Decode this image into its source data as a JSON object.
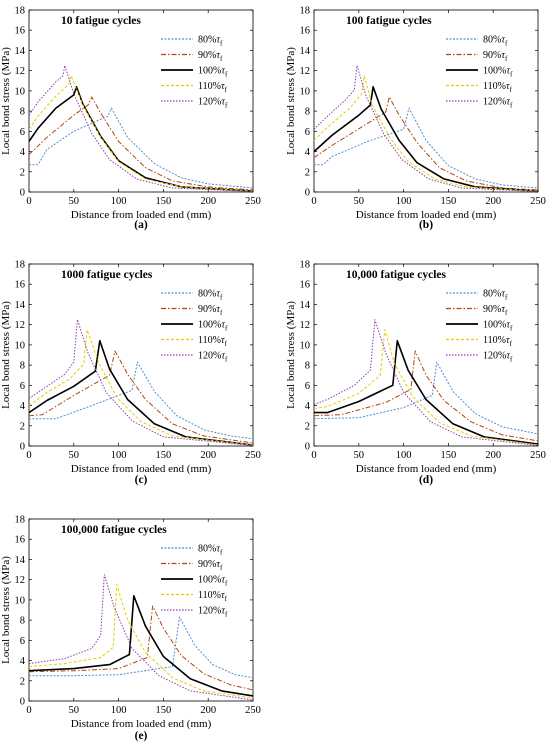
{
  "colors": {
    "s80": "#4f8fd0",
    "s90": "#b5430f",
    "s100": "#000000",
    "s110": "#e8cc00",
    "s120": "#8a3fb0"
  },
  "chart_data": [
    {
      "type": "line",
      "panel_label": "(a)",
      "title": "10 fatigue cycles",
      "xlabel": "Distance from loaded end (mm)",
      "ylabel": "Local bond stress (MPa)",
      "xlim": [
        0,
        250
      ],
      "ylim": [
        0,
        18
      ],
      "xticks": [
        0,
        50,
        100,
        150,
        200,
        250
      ],
      "yticks": [
        0,
        2,
        4,
        6,
        8,
        10,
        12,
        14,
        16,
        18
      ],
      "legend_position": "top-right",
      "series": [
        {
          "name": "80%τf",
          "key": "s80",
          "x": [
            0,
            10,
            20,
            50,
            88,
            92,
            110,
            140,
            170,
            200,
            250
          ],
          "y": [
            2.7,
            2.7,
            4.2,
            6,
            7.5,
            8.3,
            5.4,
            2.8,
            1.4,
            0.8,
            0.4
          ]
        },
        {
          "name": "90%τf",
          "key": "s90",
          "x": [
            0,
            20,
            50,
            66,
            70,
            80,
            100,
            130,
            160,
            200,
            250
          ],
          "y": [
            3.7,
            5.4,
            7.6,
            8.6,
            9.4,
            7.8,
            5,
            2.4,
            1.1,
            0.5,
            0.2
          ]
        },
        {
          "name": "100%τf",
          "key": "s100",
          "x": [
            0,
            10,
            30,
            50,
            53,
            60,
            80,
            100,
            130,
            170,
            250
          ],
          "y": [
            5,
            6.3,
            8.3,
            9.6,
            10.4,
            8.7,
            5.5,
            3.1,
            1.4,
            0.5,
            0.1
          ]
        },
        {
          "name": "110%τf",
          "key": "s110",
          "x": [
            0,
            10,
            30,
            44,
            47,
            60,
            80,
            100,
            130,
            170,
            250
          ],
          "y": [
            6.2,
            7.5,
            9.5,
            10.6,
            11.5,
            8.6,
            5.4,
            3,
            1.3,
            0.5,
            0.1
          ]
        },
        {
          "name": "120%τf",
          "key": "s120",
          "x": [
            0,
            10,
            30,
            38,
            40,
            50,
            70,
            90,
            120,
            160,
            250
          ],
          "y": [
            7.6,
            8.9,
            10.9,
            11.5,
            12.5,
            9.7,
            5.8,
            3.2,
            1.3,
            0.4,
            0.05
          ]
        }
      ]
    },
    {
      "type": "line",
      "panel_label": "(b)",
      "title": "100 fatigue cycles",
      "xlabel": "Distance from loaded end (mm)",
      "ylabel": "Local bond stress (MPa)",
      "xlim": [
        0,
        250
      ],
      "ylim": [
        0,
        18
      ],
      "xticks": [
        0,
        50,
        100,
        150,
        200,
        250
      ],
      "yticks": [
        0,
        2,
        4,
        6,
        8,
        10,
        12,
        14,
        16,
        18
      ],
      "legend_position": "top-right",
      "series": [
        {
          "name": "80%τf",
          "key": "s80",
          "x": [
            0,
            10,
            20,
            60,
            100,
            106,
            125,
            150,
            180,
            210,
            250
          ],
          "y": [
            2.7,
            2.7,
            3.5,
            5,
            6.2,
            8.3,
            5.1,
            2.6,
            1.3,
            0.7,
            0.4
          ]
        },
        {
          "name": "90%τf",
          "key": "s90",
          "x": [
            0,
            20,
            60,
            80,
            84,
            95,
            115,
            140,
            170,
            210,
            250
          ],
          "y": [
            3.4,
            4.6,
            6.8,
            7.9,
            9.4,
            7.6,
            4.9,
            2.4,
            1.1,
            0.4,
            0.2
          ]
        },
        {
          "name": "100%τf",
          "key": "s100",
          "x": [
            0,
            20,
            50,
            63,
            66,
            75,
            95,
            115,
            145,
            180,
            250
          ],
          "y": [
            4,
            5.6,
            7.6,
            8.6,
            10.4,
            8.2,
            5.1,
            2.9,
            1.3,
            0.5,
            0.1
          ]
        },
        {
          "name": "110%τf",
          "key": "s110",
          "x": [
            0,
            15,
            40,
            53,
            56,
            65,
            85,
            105,
            135,
            170,
            250
          ],
          "y": [
            5.1,
            6.4,
            8.3,
            9.7,
            11.5,
            8.6,
            5.3,
            3,
            1.3,
            0.5,
            0.1
          ]
        },
        {
          "name": "120%τf",
          "key": "s120",
          "x": [
            0,
            15,
            35,
            45,
            48,
            58,
            78,
            98,
            128,
            165,
            250
          ],
          "y": [
            6.2,
            7.5,
            9.1,
            10.1,
            12.5,
            9.5,
            5.7,
            3.2,
            1.3,
            0.4,
            0.05
          ]
        }
      ]
    },
    {
      "type": "line",
      "panel_label": "(c)",
      "title": "1000 fatigue cycles",
      "xlabel": "Distance from loaded end (mm)",
      "ylabel": "Local bond stress (MPa)",
      "xlim": [
        0,
        250
      ],
      "ylim": [
        0,
        18
      ],
      "xticks": [
        0,
        50,
        100,
        150,
        200,
        250
      ],
      "yticks": [
        0,
        2,
        4,
        6,
        8,
        10,
        12,
        14,
        16,
        18
      ],
      "legend_position": "top-right",
      "series": [
        {
          "name": "80%τf",
          "key": "s80",
          "x": [
            0,
            30,
            70,
            115,
            121,
            140,
            165,
            195,
            225,
            250
          ],
          "y": [
            2.7,
            2.7,
            4,
            5.5,
            8.3,
            5.4,
            3,
            1.6,
            1,
            0.7
          ]
        },
        {
          "name": "90%τf",
          "key": "s90",
          "x": [
            0,
            15,
            50,
            90,
            96,
            110,
            130,
            160,
            195,
            250
          ],
          "y": [
            3,
            3.1,
            5,
            7,
            9.4,
            7.1,
            4.6,
            2.2,
            1,
            0.3
          ]
        },
        {
          "name": "100%τf",
          "key": "s100",
          "x": [
            0,
            20,
            50,
            74,
            79,
            90,
            110,
            140,
            175,
            250
          ],
          "y": [
            3.3,
            4.5,
            5.9,
            7.4,
            10.4,
            7.6,
            4.6,
            2.2,
            0.9,
            0.1
          ]
        },
        {
          "name": "110%τf",
          "key": "s110",
          "x": [
            0,
            20,
            45,
            61,
            65,
            78,
            98,
            125,
            160,
            250
          ],
          "y": [
            4,
            5.3,
            6.6,
            8.1,
            11.5,
            8.2,
            4.8,
            2.4,
            1,
            0.1
          ]
        },
        {
          "name": "120%τf",
          "key": "s120",
          "x": [
            0,
            20,
            40,
            50,
            54,
            66,
            86,
            115,
            150,
            250
          ],
          "y": [
            4.7,
            5.9,
            7.1,
            8.3,
            12.5,
            9.2,
            5.3,
            2.5,
            0.9,
            0.05
          ]
        }
      ]
    },
    {
      "type": "line",
      "panel_label": "(d)",
      "title": "10,000 fatigue cycles",
      "xlabel": "Distance from loaded end (mm)",
      "ylabel": "Local bond stress (MPa)",
      "xlim": [
        0,
        250
      ],
      "ylim": [
        0,
        18
      ],
      "xticks": [
        0,
        50,
        100,
        150,
        200,
        250
      ],
      "yticks": [
        0,
        2,
        4,
        6,
        8,
        10,
        12,
        14,
        16,
        18
      ],
      "legend_position": "top-right",
      "series": [
        {
          "name": "80%τf",
          "key": "s80",
          "x": [
            0,
            50,
            100,
            132,
            137,
            155,
            180,
            210,
            250
          ],
          "y": [
            2.7,
            2.8,
            3.8,
            5,
            8.3,
            5.4,
            3.2,
            1.9,
            1.2
          ]
        },
        {
          "name": "90%τf",
          "key": "s90",
          "x": [
            0,
            30,
            80,
            108,
            113,
            125,
            145,
            175,
            210,
            250
          ],
          "y": [
            3,
            3.1,
            4.3,
            5.6,
            9.4,
            7,
            4.5,
            2.4,
            1.1,
            0.5
          ]
        },
        {
          "name": "100%τf",
          "key": "s100",
          "x": [
            0,
            15,
            50,
            88,
            93,
            105,
            125,
            155,
            190,
            250
          ],
          "y": [
            3.3,
            3.3,
            4.4,
            6,
            10.4,
            7.5,
            4.6,
            2.2,
            0.9,
            0.2
          ]
        },
        {
          "name": "110%τf",
          "key": "s110",
          "x": [
            0,
            15,
            50,
            74,
            79,
            90,
            110,
            140,
            175,
            250
          ],
          "y": [
            3.7,
            3.9,
            5.2,
            7,
            11.5,
            8.1,
            4.9,
            2.3,
            1,
            0.1
          ]
        },
        {
          "name": "120%τf",
          "key": "s120",
          "x": [
            0,
            15,
            45,
            63,
            68,
            80,
            100,
            130,
            165,
            250
          ],
          "y": [
            4.1,
            4.6,
            6,
            7.5,
            12.5,
            9.2,
            5.3,
            2.4,
            0.9,
            0.05
          ]
        }
      ]
    },
    {
      "type": "line",
      "panel_label": "(e)",
      "title": "100,000 fatigue cycles",
      "xlabel": "Distance from loaded end (mm)",
      "ylabel": "Local bond stress (MPa)",
      "xlim": [
        0,
        250
      ],
      "ylim": [
        0,
        18
      ],
      "xticks": [
        0,
        50,
        100,
        150,
        200,
        250
      ],
      "yticks": [
        0,
        2,
        4,
        6,
        8,
        10,
        12,
        14,
        16,
        18
      ],
      "legend_position": "top-right",
      "series": [
        {
          "name": "80%τf",
          "key": "s80",
          "x": [
            0,
            50,
            100,
            160,
            168,
            185,
            205,
            230,
            250
          ],
          "y": [
            2.5,
            2.5,
            2.6,
            3.4,
            8.3,
            5.5,
            3.6,
            2.6,
            2.3
          ]
        },
        {
          "name": "90%τf",
          "key": "s90",
          "x": [
            0,
            50,
            100,
            132,
            138,
            150,
            170,
            195,
            225,
            250
          ],
          "y": [
            2.9,
            3,
            3.2,
            4.3,
            9.4,
            7.2,
            4.5,
            2.7,
            1.6,
            1.1
          ]
        },
        {
          "name": "100%τf",
          "key": "s100",
          "x": [
            0,
            50,
            90,
            112,
            117,
            130,
            150,
            180,
            215,
            250
          ],
          "y": [
            3,
            3.2,
            3.6,
            4.6,
            10.4,
            7.4,
            4.4,
            2.2,
            1,
            0.5
          ]
        },
        {
          "name": "110%τf",
          "key": "s110",
          "x": [
            0,
            40,
            80,
            94,
            98,
            110,
            130,
            160,
            195,
            250
          ],
          "y": [
            3.4,
            3.7,
            4.3,
            5.3,
            11.5,
            8,
            4.8,
            2.3,
            1,
            0.3
          ]
        },
        {
          "name": "120%τf",
          "key": "s120",
          "x": [
            0,
            40,
            70,
            80,
            84,
            95,
            115,
            145,
            180,
            250
          ],
          "y": [
            3.7,
            4.2,
            5.2,
            6.5,
            12.5,
            9.3,
            5.2,
            2.5,
            1,
            0.1
          ]
        }
      ]
    }
  ]
}
